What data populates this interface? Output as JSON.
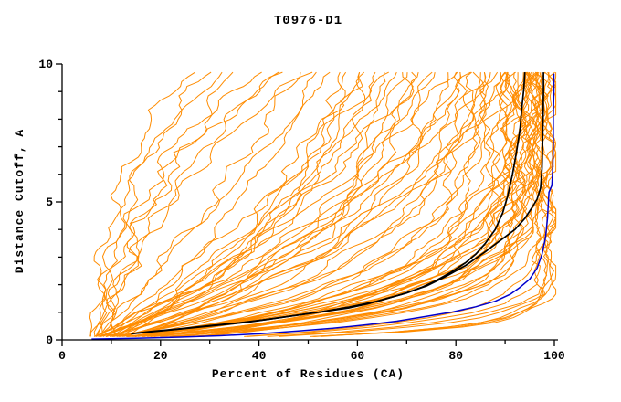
{
  "chart_data": {
    "type": "line",
    "title": "T0976-D1",
    "xlabel": "Percent of Residues (CA)",
    "ylabel": "Distance Cutoff, A",
    "xlim": [
      0,
      100
    ],
    "ylim": [
      0,
      10
    ],
    "x_major_ticks": [
      0,
      20,
      40,
      60,
      80,
      100
    ],
    "x_minor_step": 10,
    "y_major_ticks": [
      0,
      5,
      10
    ],
    "y_minor_step": 1,
    "grid": false,
    "legend": "none",
    "y_max_data": 9.7,
    "colors": {
      "model": "#ff8c00",
      "highlight": "#000000",
      "best": "#0000cd",
      "axis": "#000000"
    },
    "series": {
      "best_model": {
        "color_key": "best",
        "points": [
          [
            6,
            0.03
          ],
          [
            15,
            0.06
          ],
          [
            24,
            0.1
          ],
          [
            32,
            0.15
          ],
          [
            40,
            0.22
          ],
          [
            48,
            0.32
          ],
          [
            55,
            0.42
          ],
          [
            62,
            0.55
          ],
          [
            68,
            0.68
          ],
          [
            74,
            0.85
          ],
          [
            79,
            1.0
          ],
          [
            84,
            1.2
          ],
          [
            88,
            1.4
          ],
          [
            91,
            1.65
          ],
          [
            93,
            1.9
          ],
          [
            95,
            2.2
          ],
          [
            96.5,
            2.6
          ],
          [
            97.5,
            3.1
          ],
          [
            98.2,
            3.7
          ],
          [
            98.6,
            4.4
          ],
          [
            98.8,
            5.0
          ],
          [
            98.9,
            5.35
          ],
          [
            99.5,
            5.6
          ],
          [
            99.7,
            6.3
          ],
          [
            99.8,
            7.2
          ],
          [
            99.8,
            8.2
          ],
          [
            99.9,
            9.0
          ],
          [
            99.9,
            9.65
          ]
        ]
      },
      "highlight_models": [
        {
          "points": [
            [
              14,
              0.22
            ],
            [
              18,
              0.3
            ],
            [
              24,
              0.4
            ],
            [
              30,
              0.52
            ],
            [
              36,
              0.62
            ],
            [
              42,
              0.75
            ],
            [
              48,
              0.9
            ],
            [
              54,
              1.05
            ],
            [
              58,
              1.15
            ],
            [
              62,
              1.3
            ],
            [
              66,
              1.5
            ],
            [
              70,
              1.7
            ],
            [
              73,
              1.9
            ],
            [
              76,
              2.15
            ],
            [
              79,
              2.45
            ],
            [
              82,
              2.8
            ],
            [
              84,
              3.1
            ],
            [
              86,
              3.5
            ],
            [
              88,
              4.0
            ],
            [
              89.5,
              4.6
            ],
            [
              90.5,
              5.2
            ],
            [
              91.5,
              6.0
            ],
            [
              92.3,
              6.8
            ],
            [
              93,
              7.6
            ],
            [
              93.4,
              8.4
            ],
            [
              93.8,
              9.1
            ],
            [
              94,
              9.7
            ]
          ]
        },
        {
          "points": [
            [
              15,
              0.24
            ],
            [
              22,
              0.36
            ],
            [
              30,
              0.5
            ],
            [
              38,
              0.65
            ],
            [
              46,
              0.85
            ],
            [
              52,
              1.0
            ],
            [
              58,
              1.18
            ],
            [
              64,
              1.4
            ],
            [
              69,
              1.65
            ],
            [
              74,
              1.95
            ],
            [
              78,
              2.3
            ],
            [
              82,
              2.7
            ],
            [
              86,
              3.2
            ],
            [
              89,
              3.6
            ],
            [
              92,
              4.0
            ],
            [
              94,
              4.4
            ],
            [
              95.5,
              4.8
            ],
            [
              96.5,
              5.1
            ],
            [
              97.2,
              5.5
            ],
            [
              97.5,
              6.2
            ],
            [
              97.6,
              7.0
            ],
            [
              97.7,
              8.0
            ],
            [
              97.8,
              9.0
            ],
            [
              97.8,
              9.7
            ]
          ]
        }
      ],
      "model_curves": {
        "color_key": "model",
        "note": "each entry = [percent_at_cutoff_0, percent_at_cutoff_max, shape_k]",
        "params": [
          [
            6,
            26,
            -0.25
          ],
          [
            7,
            30,
            -0.2
          ],
          [
            8,
            33,
            -0.3
          ],
          [
            6,
            36,
            -0.15
          ],
          [
            9,
            40,
            -0.2
          ],
          [
            7,
            43,
            -0.1
          ],
          [
            10,
            46,
            -0.25
          ],
          [
            8,
            50,
            -0.15
          ],
          [
            6,
            48,
            0.05
          ],
          [
            8,
            52,
            0.1
          ],
          [
            7,
            55,
            0.0
          ],
          [
            10,
            58,
            0.15
          ],
          [
            6,
            60,
            0.1
          ],
          [
            9,
            62,
            0.2
          ],
          [
            12,
            64,
            0.05
          ],
          [
            8,
            66,
            0.15
          ],
          [
            7,
            68,
            0.1
          ],
          [
            11,
            70,
            0.25
          ],
          [
            9,
            72,
            0.1
          ],
          [
            6,
            74,
            0.2
          ],
          [
            13,
            75,
            0.3
          ],
          [
            8,
            57,
            0.25
          ],
          [
            10,
            65,
            0.35
          ],
          [
            7,
            71,
            0.3
          ],
          [
            15,
            69,
            0.2
          ],
          [
            12,
            61,
            0.15
          ],
          [
            6,
            78,
            0.3
          ],
          [
            8,
            80,
            0.4
          ],
          [
            7,
            82,
            0.5
          ],
          [
            9,
            84,
            0.35
          ],
          [
            10,
            85,
            0.6
          ],
          [
            6,
            86,
            0.45
          ],
          [
            8,
            87,
            0.55
          ],
          [
            11,
            88,
            0.4
          ],
          [
            7,
            89,
            0.7
          ],
          [
            9,
            90,
            0.5
          ],
          [
            12,
            90,
            0.8
          ],
          [
            8,
            91,
            0.6
          ],
          [
            6,
            92,
            0.9
          ],
          [
            10,
            92,
            0.5
          ],
          [
            7,
            93,
            0.7
          ],
          [
            13,
            93,
            1.0
          ],
          [
            9,
            94,
            0.6
          ],
          [
            8,
            94,
            0.85
          ],
          [
            11,
            95,
            0.7
          ],
          [
            6,
            95,
            1.1
          ],
          [
            10,
            96,
            0.8
          ],
          [
            7,
            96,
            0.6
          ],
          [
            12,
            96,
            1.0
          ],
          [
            9,
            97,
            0.75
          ],
          [
            8,
            97,
            1.2
          ],
          [
            14,
            95,
            0.5
          ],
          [
            16,
            93,
            0.45
          ],
          [
            18,
            94,
            0.65
          ],
          [
            20,
            92,
            0.55
          ],
          [
            15,
            96,
            0.9
          ],
          [
            22,
            95,
            0.75
          ],
          [
            17,
            97,
            1.0
          ],
          [
            19,
            96,
            0.6
          ],
          [
            24,
            94,
            0.5
          ],
          [
            21,
            97,
            0.85
          ],
          [
            25,
            98,
            1.6
          ],
          [
            30,
            98,
            2.0
          ],
          [
            28,
            99,
            1.8
          ],
          [
            35,
            99,
            2.4
          ],
          [
            26,
            97,
            1.4
          ],
          [
            32,
            98,
            2.8
          ],
          [
            38,
            100,
            2.2
          ],
          [
            29,
            99,
            3.0
          ],
          [
            5,
            81,
            0.2
          ],
          [
            6,
            83,
            0.15
          ],
          [
            7,
            85,
            0.25
          ],
          [
            5,
            88,
            0.1
          ],
          [
            8,
            90,
            0.2
          ],
          [
            6,
            93,
            0.15
          ],
          [
            9,
            86,
            0.3
          ],
          [
            5,
            79,
            0.1
          ]
        ]
      }
    }
  }
}
